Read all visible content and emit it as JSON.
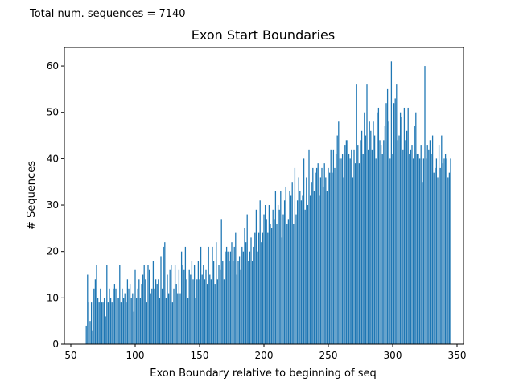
{
  "note": "Total num. sequences = 7140",
  "chart_data": {
    "type": "bar",
    "title": "Exon Start Boundaries",
    "xlabel": "Exon Boundary relative to beginning of seq",
    "ylabel": "# Sequences",
    "xlim": [
      45,
      355
    ],
    "ylim": [
      0,
      64
    ],
    "xticks": [
      50,
      100,
      150,
      200,
      250,
      300,
      350
    ],
    "yticks": [
      0,
      10,
      20,
      30,
      40,
      50,
      60
    ],
    "grid": false,
    "bar_width": 0.8,
    "color": "#1f77b4",
    "x_start": 62,
    "values": [
      4,
      15,
      9,
      5,
      9,
      3,
      12,
      14,
      17,
      10,
      9,
      12,
      9,
      9,
      10,
      6,
      17,
      9,
      12,
      10,
      9,
      12,
      13,
      12,
      10,
      10,
      17,
      9,
      12,
      10,
      11,
      9,
      14,
      12,
      13,
      10,
      11,
      7,
      16,
      10,
      12,
      14,
      10,
      13,
      15,
      17,
      14,
      9,
      17,
      16,
      11,
      12,
      18,
      12,
      14,
      13,
      14,
      10,
      19,
      12,
      21,
      22,
      10,
      15,
      11,
      16,
      17,
      9,
      12,
      17,
      13,
      11,
      16,
      11,
      20,
      17,
      16,
      21,
      14,
      10,
      16,
      15,
      18,
      14,
      17,
      10,
      14,
      18,
      14,
      21,
      15,
      17,
      14,
      16,
      13,
      21,
      15,
      14,
      21,
      18,
      13,
      22,
      14,
      17,
      16,
      27,
      18,
      14,
      20,
      21,
      20,
      18,
      20,
      22,
      18,
      21,
      24,
      15,
      18,
      19,
      16,
      21,
      20,
      25,
      22,
      28,
      18,
      20,
      23,
      18,
      21,
      24,
      29,
      20,
      24,
      31,
      22,
      24,
      28,
      30,
      27,
      24,
      30,
      26,
      25,
      29,
      27,
      33,
      26,
      30,
      29,
      33,
      23,
      28,
      31,
      34,
      26,
      27,
      33,
      32,
      35,
      26,
      38,
      28,
      31,
      36,
      33,
      31,
      32,
      40,
      29,
      36,
      30,
      42,
      32,
      35,
      38,
      33,
      37,
      38,
      39,
      32,
      36,
      38,
      34,
      39,
      36,
      33,
      38,
      37,
      42,
      37,
      42,
      38,
      41,
      45,
      48,
      40,
      40,
      41,
      36,
      43,
      44,
      44,
      41,
      40,
      42,
      36,
      42,
      39,
      56,
      43,
      39,
      44,
      46,
      41,
      50,
      45,
      56,
      42,
      48,
      46,
      42,
      48,
      45,
      40,
      50,
      51,
      44,
      43,
      41,
      44,
      47,
      52,
      55,
      48,
      40,
      61,
      41,
      52,
      53,
      56,
      44,
      45,
      50,
      49,
      42,
      51,
      44,
      46,
      51,
      41,
      42,
      43,
      40,
      47,
      50,
      41,
      41,
      40,
      43,
      35,
      40,
      60,
      40,
      43,
      42,
      44,
      41,
      45,
      37,
      38,
      40,
      36,
      43,
      38,
      45,
      39,
      40,
      41,
      40,
      36,
      37,
      40
    ]
  }
}
